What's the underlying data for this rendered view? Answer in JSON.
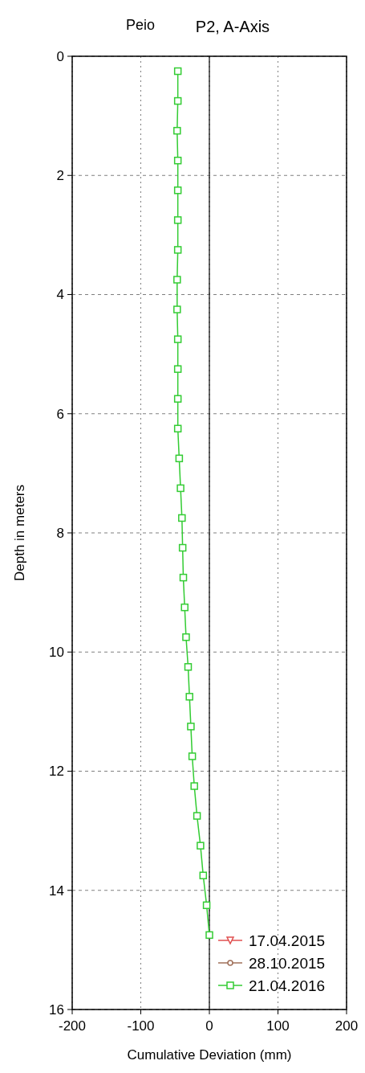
{
  "chart_data": {
    "type": "line",
    "title": "P2, A-Axis",
    "annotations": [
      "Peio"
    ],
    "xlabel": "Cumulative Deviation (mm)",
    "ylabel": "Depth in meters",
    "xlim": [
      -200,
      200
    ],
    "xticks": [
      -200,
      -100,
      0,
      100,
      200
    ],
    "ylim": [
      16,
      0
    ],
    "yticks": [
      0,
      2,
      4,
      6,
      8,
      10,
      12,
      14,
      16
    ],
    "grid": true,
    "legend": "bottom right",
    "ref_lines": [
      {
        "axis": "x",
        "value": 0,
        "color": "#000000"
      }
    ],
    "series": [
      {
        "name": "17.04.2015",
        "color": "#e05050",
        "marker": "triangle"
      },
      {
        "name": "28.10.2015",
        "color": "#a0705a",
        "marker": "circle"
      },
      {
        "name": "21.04.2016",
        "color": "#33cc33",
        "marker": "square",
        "x": [
          -46,
          -46,
          -47,
          -46,
          -46,
          -46,
          -46,
          -47,
          -47,
          -46,
          -46,
          -46,
          -46,
          -44,
          -42,
          -40,
          -39,
          -38,
          -36,
          -34,
          -31,
          -29,
          -27,
          -25,
          -22,
          -18,
          -13,
          -9,
          -4,
          0
        ],
        "values": [
          0.25,
          0.75,
          1.25,
          1.75,
          2.25,
          2.75,
          3.25,
          3.75,
          4.25,
          4.75,
          5.25,
          5.75,
          6.25,
          6.75,
          7.25,
          7.75,
          8.25,
          8.75,
          9.25,
          9.75,
          10.25,
          10.75,
          11.25,
          11.75,
          12.25,
          12.75,
          13.25,
          13.75,
          14.25,
          14.75
        ]
      }
    ]
  }
}
